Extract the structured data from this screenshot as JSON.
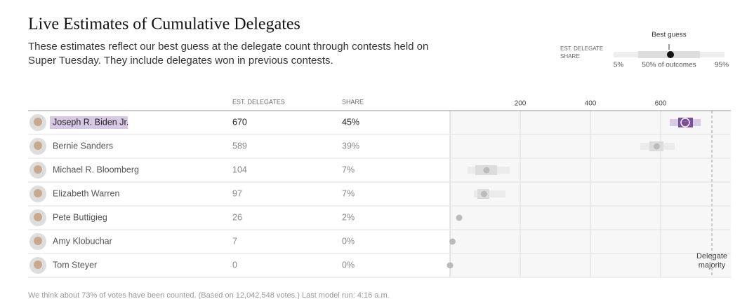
{
  "chart_data": {
    "type": "range-dot",
    "title": "Live Estimates of Cumulative Delegates",
    "subtitle": "These estimates reflect our best guess at the delegate count through contests held on Super Tuesday. They include delegates won in previous contests.",
    "legend": {
      "axis_label": "EST. DELEGATE SHARE",
      "best_guess": "Best guess",
      "low": "5%",
      "mid": "50% of outcomes",
      "high": "95%"
    },
    "columns": [
      "EST. DELEGATES",
      "SHARE"
    ],
    "categories": [
      "Joseph R. Biden Jr.",
      "Bernie Sanders",
      "Michael R. Bloomberg",
      "Elizabeth Warren",
      "Pete Buttigieg",
      "Amy Klobuchar",
      "Tom Steyer"
    ],
    "values": [
      670,
      589,
      104,
      97,
      26,
      7,
      0
    ],
    "shares": [
      45,
      39,
      7,
      7,
      2,
      0,
      0
    ],
    "share_labels": [
      "45%",
      "39%",
      "7%",
      "7%",
      "2%",
      "0%",
      "0%"
    ],
    "range50": [
      [
        650,
        692
      ],
      [
        568,
        608
      ],
      [
        72,
        134
      ],
      [
        78,
        112
      ],
      null,
      null,
      null
    ],
    "range90": [
      [
        626,
        714
      ],
      [
        542,
        640
      ],
      [
        50,
        170
      ],
      [
        68,
        158
      ],
      null,
      null,
      null
    ],
    "xlim": [
      0,
      800
    ],
    "xticks": [
      200,
      400,
      600
    ],
    "majority": 746,
    "majority_label": "Delegate majority",
    "highlight_color": "#7b4fa0",
    "footnote": "We think about 73% of votes have been counted. (Based on 12,042,548 votes.) Last model run: 4:16 a.m."
  }
}
